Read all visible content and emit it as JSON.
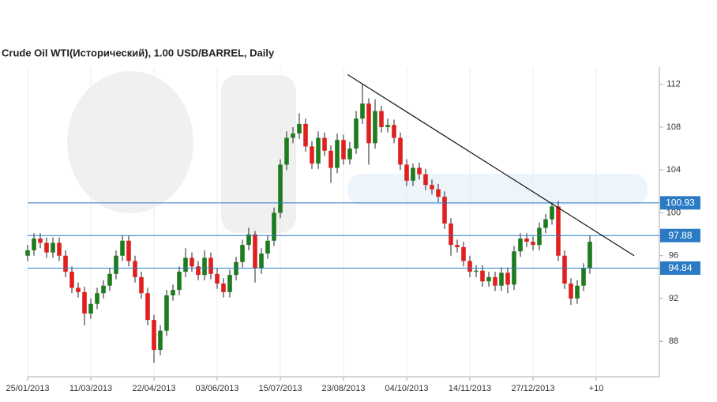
{
  "chart_data": {
    "type": "candlestick",
    "title": "Crude Oil WTI(Исторический), 1.00 USD/BARREL, Daily",
    "x": [
      0,
      3,
      6,
      9,
      12,
      15,
      18,
      21,
      24,
      27,
      30,
      33,
      36,
      39,
      42,
      45,
      48,
      51,
      54,
      57,
      60,
      63,
      66,
      69,
      72,
      75,
      78,
      81,
      84,
      87,
      90,
      93,
      96,
      99,
      102,
      105,
      108,
      111,
      114,
      117,
      120,
      123,
      126,
      129,
      132,
      135,
      138,
      141,
      144,
      147,
      150,
      153,
      156,
      159,
      162,
      165,
      168,
      171,
      174,
      177,
      180,
      183,
      186,
      189,
      192,
      195,
      198,
      201,
      204,
      207,
      210,
      213,
      216,
      219,
      222,
      225,
      228,
      231,
      234,
      237,
      240,
      243,
      246,
      249,
      252,
      255,
      258,
      261,
      264,
      267
    ],
    "open": [
      96,
      96.5,
      97.6,
      97.2,
      96.3,
      97.2,
      96,
      94.5,
      93,
      92.6,
      90.6,
      91.5,
      92.5,
      93.2,
      94.3,
      96,
      97.4,
      95.5,
      94,
      92.5,
      90,
      87.2,
      89,
      92.3,
      92.8,
      94.5,
      95.8,
      95,
      94.2,
      95.8,
      94.3,
      93.4,
      92.6,
      94.2,
      95.4,
      97,
      98,
      94.8,
      96.2,
      97.4,
      100,
      104.5,
      107,
      107.4,
      108.3,
      106.2,
      104.6,
      107,
      105.8,
      104.2,
      106.8,
      105,
      106,
      108.8,
      110.2,
      106.5,
      109.5,
      108,
      108.2,
      107,
      104.5,
      103,
      104.2,
      103.6,
      102.6,
      102.2,
      101.5,
      99,
      97,
      96.8,
      95.5,
      94.5,
      94.6,
      93.6,
      94,
      93.2,
      94.4,
      93.3,
      96.4,
      97.6,
      97.3,
      97,
      98.6,
      99.4,
      100.6,
      96,
      93.4,
      92,
      93.2,
      94.8
    ],
    "high": [
      97,
      98.1,
      98.1,
      97.7,
      97.7,
      97.7,
      96.5,
      95,
      93.5,
      93.1,
      92,
      93,
      93.7,
      94.8,
      96.5,
      97.9,
      97.9,
      96,
      94.5,
      93,
      90.5,
      89.5,
      92.8,
      93.3,
      95,
      96.7,
      96.3,
      95.5,
      96.5,
      96.3,
      94.8,
      93.9,
      94.7,
      95.9,
      97.5,
      98.6,
      98.3,
      96.7,
      97.9,
      100.5,
      105,
      107.6,
      108,
      109.3,
      108.8,
      106.7,
      107.6,
      107.5,
      106.3,
      107.4,
      107.3,
      106.6,
      109.5,
      112,
      110.7,
      110.6,
      110,
      108.8,
      108.7,
      107.5,
      105,
      104.6,
      104.7,
      104.1,
      103.1,
      102.7,
      102,
      99.5,
      97.5,
      97.3,
      96,
      95.1,
      95.1,
      94.5,
      94.5,
      94.9,
      94.9,
      96.9,
      98.1,
      98.1,
      97.8,
      99.1,
      99.9,
      101,
      101.1,
      96.5,
      93.9,
      93.7,
      95.3,
      97.9
    ],
    "low": [
      95.5,
      96,
      96.7,
      95.8,
      95.8,
      95.5,
      94,
      92.5,
      92.1,
      89.5,
      90.1,
      91,
      92,
      92.7,
      93.8,
      95.5,
      95,
      93.5,
      92,
      89.5,
      86,
      86.7,
      88.5,
      91.8,
      92.3,
      94,
      94.5,
      93.7,
      93.7,
      93.8,
      92.9,
      92.1,
      92.1,
      93.7,
      94.9,
      96.5,
      93.5,
      94.3,
      95.7,
      96.9,
      99.5,
      104,
      106.5,
      106.9,
      105.7,
      104.1,
      104.1,
      105.3,
      102.8,
      103.7,
      104.5,
      104.5,
      105.5,
      108.3,
      104.5,
      106,
      107.5,
      107.5,
      106.5,
      104,
      102.5,
      102.5,
      103.1,
      102.1,
      101.7,
      101,
      98.5,
      96,
      96.3,
      95,
      94,
      94,
      93.1,
      93.1,
      92.7,
      92.7,
      92.5,
      92.8,
      95.9,
      96.8,
      96.5,
      96.5,
      98.1,
      98.9,
      95.5,
      92.9,
      91.4,
      91.5,
      92.7,
      94.3
    ],
    "close": [
      96.5,
      97.6,
      97.2,
      96.3,
      97.2,
      96,
      94.5,
      93,
      92.6,
      90.6,
      91.5,
      92.5,
      93.2,
      94.3,
      96,
      97.4,
      95.5,
      94,
      92.5,
      90,
      87.2,
      89,
      92.3,
      92.8,
      94.5,
      95.8,
      95,
      94.2,
      95.8,
      94.3,
      93.4,
      92.6,
      94.2,
      95.4,
      97,
      98,
      94.8,
      96.2,
      97.4,
      100,
      104.5,
      107,
      107.4,
      108.3,
      106.2,
      104.6,
      107,
      105.8,
      104.2,
      106.8,
      105,
      106,
      108.8,
      110.2,
      106.5,
      109.5,
      108,
      108.2,
      107,
      104.5,
      103,
      104.2,
      103.6,
      102.6,
      102.2,
      101.5,
      99,
      97,
      96.8,
      95.5,
      94.5,
      94.6,
      93.6,
      94,
      93.2,
      94.4,
      93.3,
      96.4,
      97.6,
      97.3,
      97,
      98.6,
      99.4,
      100.6,
      96,
      93.4,
      92,
      93.2,
      94.8,
      97.3
    ],
    "up_color": "#1e7b1e",
    "down_color": "#e0201e",
    "levels": [
      100.93,
      97.88,
      94.84
    ],
    "level_color": "#2a7bc4",
    "trendline": {
      "x": [
        152,
        288
      ],
      "y": [
        112.9,
        96
      ]
    },
    "xlim": [
      0,
      300
    ],
    "xticks": [
      {
        "value": 0,
        "label": "25/01/2013"
      },
      {
        "value": 30,
        "label": "11/03/2013"
      },
      {
        "value": 60,
        "label": "22/04/2013"
      },
      {
        "value": 90,
        "label": "03/06/2013"
      },
      {
        "value": 120,
        "label": "15/07/2013"
      },
      {
        "value": 150,
        "label": "23/08/2013"
      },
      {
        "value": 180,
        "label": "04/10/2013"
      },
      {
        "value": 210,
        "label": "14/11/2013"
      },
      {
        "value": 240,
        "label": "27/12/2013"
      },
      {
        "value": 270,
        "label": "+10"
      }
    ],
    "ylim": [
      84.7,
      113.6
    ],
    "yticks": [
      88,
      92,
      96,
      100,
      104,
      108,
      112
    ],
    "grid": true
  }
}
